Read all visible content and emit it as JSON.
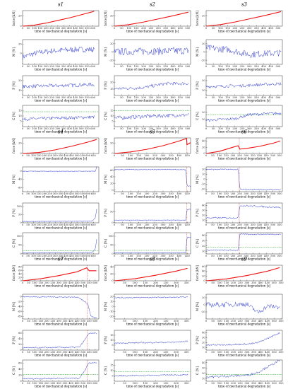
{
  "figure": {
    "colors": {
      "force": "#ee1111",
      "signal": "#2a35c8",
      "threshold": "#1a9a1a",
      "failure_line": "#cc0000",
      "axis": "#000000"
    },
    "row_xlabel": "time of mechanical degradation [s]",
    "ylabels": {
      "force": "force [kN]",
      "m": "M [%]",
      "p": "P [%]",
      "c": "C [%]"
    }
  },
  "chart_data": [
    {
      "type": "line",
      "id": "s1",
      "title": "s1",
      "x_ticks": [
        0,
        50,
        100,
        150,
        200,
        250,
        300,
        350,
        400,
        450,
        500,
        550,
        600
      ],
      "xlim": [
        0,
        650
      ],
      "force": {
        "y_ticks": [
          0,
          20
        ],
        "ylim": [
          0,
          30
        ],
        "points": [
          [
            0,
            0
          ],
          [
            100,
            2
          ],
          [
            200,
            6
          ],
          [
            300,
            11
          ],
          [
            400,
            16
          ],
          [
            500,
            22
          ],
          [
            600,
            28
          ],
          [
            610,
            29
          ]
        ]
      },
      "m": {
        "y_ticks": [
          0,
          20
        ],
        "ylim": [
          -25,
          30
        ],
        "mean": [
          [
            0,
            -8
          ],
          [
            150,
            2
          ],
          [
            300,
            6
          ],
          [
            450,
            8
          ],
          [
            610,
            8
          ]
        ],
        "noise": 6
      },
      "p": {
        "y_ticks": [
          10,
          20
        ],
        "ylim": [
          5,
          25
        ],
        "mean": [
          [
            0,
            14
          ],
          [
            300,
            15
          ],
          [
            610,
            16
          ]
        ],
        "noise": 1.8
      },
      "c": {
        "y_ticks": [
          5,
          10,
          15
        ],
        "ylim": [
          0,
          20
        ],
        "mean": [
          [
            0,
            7
          ],
          [
            300,
            8
          ],
          [
            610,
            9
          ]
        ],
        "noise": 1.5,
        "threshold": 14
      }
    },
    {
      "type": "line",
      "id": "s2",
      "title": "s2",
      "x_ticks": [
        0,
        50,
        100,
        150,
        200,
        250,
        300,
        350,
        400,
        450,
        500
      ],
      "xlim": [
        0,
        520
      ],
      "force": {
        "y_ticks": [
          0,
          20
        ],
        "ylim": [
          0,
          30
        ],
        "points": [
          [
            0,
            0
          ],
          [
            100,
            3
          ],
          [
            200,
            8
          ],
          [
            300,
            14
          ],
          [
            400,
            20
          ],
          [
            505,
            27
          ]
        ]
      },
      "m": {
        "y_ticks": [
          -20,
          0,
          20
        ],
        "ylim": [
          -30,
          30
        ],
        "mean": [
          [
            0,
            0
          ],
          [
            250,
            2
          ],
          [
            505,
            3
          ]
        ],
        "noise": 9
      },
      "p": {
        "y_ticks": [
          15,
          20
        ],
        "ylim": [
          10,
          25
        ],
        "mean": [
          [
            0,
            15
          ],
          [
            200,
            16
          ],
          [
            350,
            19
          ],
          [
            505,
            19
          ]
        ],
        "noise": 1.2
      },
      "c": {
        "y_ticks": [
          5,
          10,
          15
        ],
        "ylim": [
          0,
          20
        ],
        "mean": [
          [
            0,
            8
          ],
          [
            250,
            10
          ],
          [
            505,
            11
          ]
        ],
        "noise": 1.8,
        "threshold": 15
      }
    },
    {
      "type": "line",
      "id": "s3",
      "title": "s3",
      "x_ticks": [
        0,
        50,
        100,
        150,
        200,
        250,
        300,
        350,
        400,
        450,
        500
      ],
      "xlim": [
        0,
        530
      ],
      "force": {
        "y_ticks": [
          0,
          20
        ],
        "ylim": [
          0,
          30
        ],
        "points": [
          [
            0,
            0
          ],
          [
            100,
            3
          ],
          [
            200,
            8
          ],
          [
            300,
            14
          ],
          [
            400,
            20
          ],
          [
            520,
            28
          ]
        ]
      },
      "m": {
        "y_ticks": [
          -20,
          0,
          20
        ],
        "ylim": [
          -30,
          30
        ],
        "mean": [
          [
            0,
            10
          ],
          [
            150,
            6
          ],
          [
            300,
            -6
          ],
          [
            400,
            -4
          ],
          [
            520,
            -2
          ]
        ],
        "noise": 8
      },
      "p": {
        "y_ticks": [
          10,
          20
        ],
        "ylim": [
          5,
          25
        ],
        "mean": [
          [
            0,
            14
          ],
          [
            260,
            15
          ],
          [
            520,
            17
          ]
        ],
        "noise": 1.5
      },
      "c": {
        "y_ticks": [
          10,
          20
        ],
        "ylim": [
          0,
          30
        ],
        "mean": [
          [
            0,
            9
          ],
          [
            200,
            11
          ],
          [
            300,
            17
          ],
          [
            520,
            19
          ]
        ],
        "noise": 2,
        "threshold": 17
      }
    },
    {
      "type": "line",
      "id": "s4",
      "title": "s4",
      "x_ticks": [
        0,
        50,
        100,
        150,
        200,
        250,
        300,
        350,
        400,
        450,
        500,
        550,
        600,
        650
      ],
      "xlim": [
        0,
        700
      ],
      "force": {
        "y_ticks": [
          0,
          20
        ],
        "ylim": [
          0,
          30
        ],
        "points": [
          [
            0,
            0
          ],
          [
            150,
            2
          ],
          [
            300,
            7
          ],
          [
            450,
            14
          ],
          [
            600,
            22
          ],
          [
            680,
            27
          ]
        ]
      },
      "m": {
        "y_ticks": [
          -80,
          -40,
          0
        ],
        "ylim": [
          -100,
          20
        ],
        "mean": [
          [
            0,
            -1
          ],
          [
            670,
            -1
          ],
          [
            680,
            20
          ]
        ],
        "noise": 1
      },
      "p": {
        "y_ticks": [
          0,
          50,
          100
        ],
        "ylim": [
          0,
          120
        ],
        "mean": [
          [
            0,
            8
          ],
          [
            640,
            10
          ],
          [
            668,
            30
          ],
          [
            680,
            80
          ]
        ],
        "noise": 1
      },
      "c": {
        "y_ticks": [
          0,
          50,
          100
        ],
        "ylim": [
          0,
          120
        ],
        "mean": [
          [
            0,
            5
          ],
          [
            640,
            8
          ],
          [
            668,
            30
          ],
          [
            680,
            80
          ]
        ],
        "noise": 1,
        "threshold": 18
      }
    },
    {
      "type": "line",
      "id": "s5",
      "title": "s5",
      "x_ticks": [
        0,
        50,
        100,
        150,
        200,
        250,
        300,
        350,
        400,
        450
      ],
      "xlim": [
        0,
        470
      ],
      "force": {
        "y_ticks": [
          0,
          20
        ],
        "ylim": [
          0,
          30
        ],
        "points": [
          [
            0,
            0
          ],
          [
            100,
            3
          ],
          [
            200,
            8
          ],
          [
            300,
            15
          ],
          [
            400,
            24
          ],
          [
            445,
            29
          ],
          [
            448,
            17
          ],
          [
            470,
            21
          ]
        ],
        "failure_x": 446
      },
      "m": {
        "y_ticks": [
          0,
          20,
          40,
          60
        ],
        "ylim": [
          -5,
          70
        ],
        "mean": [
          [
            0,
            62
          ],
          [
            440,
            62
          ],
          [
            448,
            12
          ],
          [
            470,
            12
          ]
        ],
        "noise": 1
      },
      "p": {
        "y_ticks": [
          0,
          50
        ],
        "ylim": [
          0,
          90
        ],
        "mean": [
          [
            0,
            12
          ],
          [
            440,
            12
          ],
          [
            448,
            60
          ],
          [
            470,
            62
          ]
        ],
        "noise": 1
      },
      "c": {
        "y_ticks": [
          0,
          50,
          100
        ],
        "ylim": [
          0,
          120
        ],
        "mean": [
          [
            0,
            6
          ],
          [
            440,
            6
          ],
          [
            448,
            95
          ],
          [
            470,
            95
          ]
        ],
        "noise": 1,
        "threshold": 20
      }
    },
    {
      "type": "line",
      "id": "s6",
      "title": "s6",
      "x_ticks": [
        0,
        50,
        100,
        150,
        200,
        250,
        300,
        350,
        400,
        450,
        500,
        550
      ],
      "xlim": [
        0,
        570
      ],
      "force": {
        "y_ticks": [
          0,
          20,
          40
        ],
        "ylim": [
          0,
          50
        ],
        "points": [
          [
            0,
            0
          ],
          [
            100,
            7
          ],
          [
            200,
            20
          ],
          [
            240,
            25
          ],
          [
            252,
            14
          ],
          [
            300,
            16
          ],
          [
            400,
            23
          ],
          [
            500,
            33
          ],
          [
            555,
            40
          ]
        ],
        "failure_x": 248
      },
      "m": {
        "y_ticks": [
          -20,
          -10,
          0,
          10,
          20
        ],
        "ylim": [
          -25,
          25
        ],
        "mean": [
          [
            0,
            20
          ],
          [
            240,
            20
          ],
          [
            252,
            -20
          ],
          [
            555,
            -21
          ]
        ],
        "noise": 1
      },
      "p": {
        "y_ticks": [
          10,
          20,
          30,
          40
        ],
        "ylim": [
          5,
          45
        ],
        "mean": [
          [
            0,
            15
          ],
          [
            240,
            15
          ],
          [
            252,
            40
          ],
          [
            400,
            38
          ],
          [
            555,
            36
          ]
        ],
        "noise": 1.5
      },
      "c": {
        "y_ticks": [
          10,
          20,
          30,
          40
        ],
        "ylim": [
          5,
          45
        ],
        "mean": [
          [
            0,
            12
          ],
          [
            240,
            12
          ],
          [
            252,
            42
          ],
          [
            555,
            42
          ]
        ],
        "noise": 1,
        "threshold": 18
      }
    },
    {
      "type": "line",
      "id": "s7",
      "title": "s7",
      "x_ticks": [
        0,
        50,
        100,
        150,
        200,
        250,
        300,
        350,
        400,
        450,
        500,
        550,
        600
      ],
      "xlim": [
        0,
        630
      ],
      "force": {
        "y_ticks": [
          0,
          20,
          40,
          60,
          80
        ],
        "ylim": [
          0,
          90
        ],
        "points": [
          [
            0,
            0
          ],
          [
            150,
            12
          ],
          [
            300,
            30
          ],
          [
            450,
            52
          ],
          [
            530,
            75
          ],
          [
            550,
            58
          ],
          [
            610,
            58
          ]
        ],
        "failure_x": 535
      },
      "m": {
        "y_ticks": [
          -80,
          -60,
          -40,
          -20,
          0
        ],
        "ylim": [
          -90,
          10
        ],
        "mean": [
          [
            0,
            0
          ],
          [
            460,
            -2
          ],
          [
            540,
            -30
          ],
          [
            565,
            -80
          ],
          [
            610,
            -85
          ]
        ],
        "noise": 2
      },
      "p": {
        "y_ticks": [
          0,
          20,
          40,
          60
        ],
        "ylim": [
          0,
          70
        ],
        "mean": [
          [
            0,
            8
          ],
          [
            470,
            10
          ],
          [
            520,
            40
          ],
          [
            545,
            58
          ],
          [
            610,
            60
          ]
        ],
        "noise": 2
      },
      "c": {
        "y_ticks": [
          0,
          20,
          40,
          60
        ],
        "ylim": [
          0,
          70
        ],
        "mean": [
          [
            0,
            8
          ],
          [
            470,
            10
          ],
          [
            520,
            40
          ],
          [
            545,
            60
          ],
          [
            610,
            62
          ]
        ],
        "noise": 2,
        "threshold": 22
      }
    },
    {
      "type": "line",
      "id": "s8",
      "title": "s8",
      "x_ticks": [
        0,
        50,
        100,
        150,
        200,
        250,
        300,
        350
      ],
      "xlim": [
        0,
        370
      ],
      "force": {
        "y_ticks": [
          0,
          20,
          40
        ],
        "ylim": [
          0,
          45
        ],
        "points": [
          [
            0,
            0
          ],
          [
            100,
            6
          ],
          [
            200,
            16
          ],
          [
            300,
            28
          ],
          [
            355,
            36
          ]
        ]
      },
      "m": {
        "y_ticks": [
          -20,
          -10,
          0,
          10,
          20
        ],
        "ylim": [
          -25,
          25
        ],
        "mean": [
          [
            0,
            18
          ],
          [
            355,
            19
          ]
        ],
        "noise": 1
      },
      "p": {
        "y_ticks": [
          5,
          10,
          15
        ],
        "ylim": [
          0,
          20
        ],
        "mean": [
          [
            0,
            7
          ],
          [
            300,
            8
          ],
          [
            355,
            9
          ]
        ],
        "noise": 0.6
      },
      "c": {
        "y_ticks": [
          5,
          10,
          15
        ],
        "ylim": [
          0,
          20
        ],
        "mean": [
          [
            0,
            5
          ],
          [
            300,
            6
          ],
          [
            355,
            6
          ]
        ],
        "noise": 0.6,
        "threshold": 9
      }
    },
    {
      "type": "line",
      "id": "s9",
      "title": "s9",
      "x_ticks": [
        0,
        50,
        100,
        150,
        200,
        250,
        300,
        350,
        400,
        450,
        500,
        550
      ],
      "xlim": [
        0,
        560
      ],
      "force": {
        "y_ticks": [
          0,
          20,
          40,
          60
        ],
        "ylim": [
          0,
          65
        ],
        "points": [
          [
            0,
            0
          ],
          [
            150,
            8
          ],
          [
            300,
            22
          ],
          [
            450,
            40
          ],
          [
            540,
            55
          ]
        ]
      },
      "m": {
        "y_ticks": [
          -20,
          0,
          20
        ],
        "ylim": [
          -40,
          30
        ],
        "mean": [
          [
            0,
            0
          ],
          [
            300,
            2
          ],
          [
            380,
            -22
          ],
          [
            450,
            -4
          ],
          [
            540,
            -6
          ]
        ],
        "noise": 7
      },
      "p": {
        "y_ticks": [
          10,
          20,
          30,
          40
        ],
        "ylim": [
          5,
          45
        ],
        "mean": [
          [
            0,
            15
          ],
          [
            300,
            17
          ],
          [
            380,
            20
          ],
          [
            540,
            40
          ]
        ],
        "noise": 1.5
      },
      "c": {
        "y_ticks": [
          10,
          20,
          30,
          40
        ],
        "ylim": [
          5,
          45
        ],
        "mean": [
          [
            0,
            13
          ],
          [
            300,
            16
          ],
          [
            380,
            22
          ],
          [
            540,
            44
          ]
        ],
        "noise": 2,
        "threshold": 18
      }
    }
  ]
}
